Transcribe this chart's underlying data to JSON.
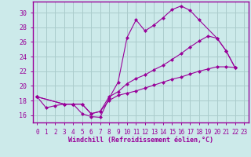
{
  "xlabel": "Windchill (Refroidissement éolien,°C)",
  "xlim": [
    -0.5,
    23.5
  ],
  "ylim": [
    15.0,
    31.5
  ],
  "yticks": [
    16,
    18,
    20,
    22,
    24,
    26,
    28,
    30
  ],
  "xticks": [
    0,
    1,
    2,
    3,
    4,
    5,
    6,
    7,
    8,
    9,
    10,
    11,
    12,
    13,
    14,
    15,
    16,
    17,
    18,
    19,
    20,
    21,
    22,
    23
  ],
  "bg_color": "#cceaea",
  "line_color": "#990099",
  "grid_color": "#aacccc",
  "line1_x": [
    0,
    1,
    2,
    3,
    4,
    5,
    6,
    7,
    8,
    9,
    10,
    11,
    12,
    13,
    14,
    15,
    16,
    17,
    18,
    20,
    21,
    22
  ],
  "line1_y": [
    18.5,
    17.0,
    17.3,
    17.5,
    17.5,
    16.2,
    15.8,
    15.7,
    18.3,
    20.5,
    26.6,
    29.0,
    27.5,
    28.3,
    29.3,
    30.4,
    30.9,
    30.3,
    29.0,
    26.5,
    24.8,
    22.5
  ],
  "line2_x": [
    0,
    3,
    4,
    5,
    6,
    7,
    8,
    9,
    10,
    11,
    12,
    13,
    14,
    15,
    16,
    17,
    18,
    19,
    20,
    21,
    22
  ],
  "line2_y": [
    18.5,
    17.5,
    17.5,
    17.5,
    16.2,
    16.5,
    18.5,
    19.2,
    20.3,
    21.0,
    21.5,
    22.2,
    22.8,
    23.6,
    24.4,
    25.3,
    26.1,
    26.8,
    26.5,
    24.8,
    22.5
  ],
  "line3_x": [
    0,
    3,
    4,
    5,
    6,
    7,
    8,
    9,
    10,
    11,
    12,
    13,
    14,
    15,
    16,
    17,
    18,
    19,
    20,
    21,
    22
  ],
  "line3_y": [
    18.5,
    17.5,
    17.5,
    17.5,
    16.2,
    16.5,
    18.0,
    18.7,
    19.0,
    19.3,
    19.7,
    20.1,
    20.5,
    20.9,
    21.2,
    21.6,
    22.0,
    22.3,
    22.6,
    22.6,
    22.5
  ]
}
